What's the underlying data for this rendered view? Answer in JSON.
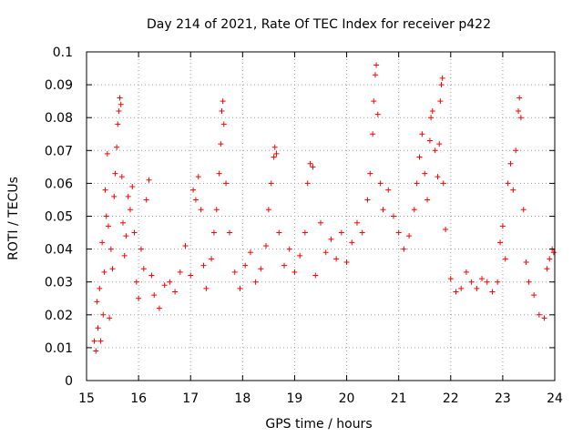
{
  "chart_data": {
    "type": "scatter",
    "title": "Day 214 of 2021, Rate Of TEC Index for receiver p422",
    "xlabel": "GPS time / hours",
    "ylabel": "ROTI / TECUs",
    "xlim": [
      15,
      24
    ],
    "ylim": [
      0,
      0.1
    ],
    "grid": true,
    "marker": "plus",
    "color": "#ff0000",
    "x_ticks": [
      "15",
      "16",
      "17",
      "18",
      "19",
      "20",
      "21",
      "22",
      "23",
      "24"
    ],
    "y_ticks": [
      "0",
      "0.01",
      "0.02",
      "0.03",
      "0.04",
      "0.05",
      "0.06",
      "0.07",
      "0.08",
      "0.09",
      "0.1"
    ],
    "x_tick_values": [
      15,
      16,
      17,
      18,
      19,
      20,
      21,
      22,
      23,
      24
    ],
    "y_tick_values": [
      0,
      0.01,
      0.02,
      0.03,
      0.04,
      0.05,
      0.06,
      0.07,
      0.08,
      0.09,
      0.1
    ],
    "series": [
      {
        "values": [
          [
            15.15,
            0.012
          ],
          [
            15.18,
            0.009
          ],
          [
            15.2,
            0.024
          ],
          [
            15.22,
            0.016
          ],
          [
            15.25,
            0.028
          ],
          [
            15.27,
            0.012
          ],
          [
            15.3,
            0.042
          ],
          [
            15.32,
            0.02
          ],
          [
            15.34,
            0.033
          ],
          [
            15.36,
            0.058
          ],
          [
            15.38,
            0.05
          ],
          [
            15.4,
            0.069
          ],
          [
            15.42,
            0.047
          ],
          [
            15.44,
            0.019
          ],
          [
            15.47,
            0.04
          ],
          [
            15.5,
            0.034
          ],
          [
            15.53,
            0.056
          ],
          [
            15.55,
            0.063
          ],
          [
            15.58,
            0.071
          ],
          [
            15.6,
            0.078
          ],
          [
            15.62,
            0.082
          ],
          [
            15.64,
            0.086
          ],
          [
            15.66,
            0.084
          ],
          [
            15.68,
            0.062
          ],
          [
            15.7,
            0.048
          ],
          [
            15.73,
            0.038
          ],
          [
            15.76,
            0.044
          ],
          [
            15.8,
            0.056
          ],
          [
            15.84,
            0.052
          ],
          [
            15.88,
            0.059
          ],
          [
            15.92,
            0.045
          ],
          [
            15.96,
            0.03
          ],
          [
            16.0,
            0.025
          ],
          [
            16.05,
            0.04
          ],
          [
            16.1,
            0.034
          ],
          [
            16.15,
            0.055
          ],
          [
            16.2,
            0.061
          ],
          [
            16.25,
            0.032
          ],
          [
            16.3,
            0.026
          ],
          [
            16.4,
            0.022
          ],
          [
            16.5,
            0.029
          ],
          [
            16.6,
            0.03
          ],
          [
            16.7,
            0.027
          ],
          [
            16.8,
            0.033
          ],
          [
            16.9,
            0.041
          ],
          [
            17.0,
            0.032
          ],
          [
            17.05,
            0.058
          ],
          [
            17.1,
            0.055
          ],
          [
            17.15,
            0.062
          ],
          [
            17.2,
            0.052
          ],
          [
            17.25,
            0.035
          ],
          [
            17.3,
            0.028
          ],
          [
            17.4,
            0.037
          ],
          [
            17.45,
            0.045
          ],
          [
            17.5,
            0.052
          ],
          [
            17.55,
            0.063
          ],
          [
            17.58,
            0.072
          ],
          [
            17.6,
            0.082
          ],
          [
            17.62,
            0.085
          ],
          [
            17.64,
            0.078
          ],
          [
            17.68,
            0.06
          ],
          [
            17.75,
            0.045
          ],
          [
            17.85,
            0.033
          ],
          [
            17.95,
            0.028
          ],
          [
            18.05,
            0.035
          ],
          [
            18.15,
            0.039
          ],
          [
            18.25,
            0.03
          ],
          [
            18.35,
            0.034
          ],
          [
            18.45,
            0.041
          ],
          [
            18.5,
            0.052
          ],
          [
            18.55,
            0.06
          ],
          [
            18.6,
            0.068
          ],
          [
            18.62,
            0.071
          ],
          [
            18.65,
            0.069
          ],
          [
            18.7,
            0.045
          ],
          [
            18.8,
            0.035
          ],
          [
            18.9,
            0.04
          ],
          [
            19.0,
            0.033
          ],
          [
            19.1,
            0.038
          ],
          [
            19.2,
            0.045
          ],
          [
            19.25,
            0.06
          ],
          [
            19.3,
            0.066
          ],
          [
            19.35,
            0.065
          ],
          [
            19.4,
            0.032
          ],
          [
            19.5,
            0.048
          ],
          [
            19.6,
            0.039
          ],
          [
            19.7,
            0.043
          ],
          [
            19.8,
            0.037
          ],
          [
            19.9,
            0.045
          ],
          [
            20.0,
            0.036
          ],
          [
            20.1,
            0.042
          ],
          [
            20.2,
            0.048
          ],
          [
            20.3,
            0.045
          ],
          [
            20.4,
            0.055
          ],
          [
            20.45,
            0.063
          ],
          [
            20.5,
            0.075
          ],
          [
            20.52,
            0.085
          ],
          [
            20.55,
            0.093
          ],
          [
            20.57,
            0.096
          ],
          [
            20.6,
            0.081
          ],
          [
            20.65,
            0.06
          ],
          [
            20.7,
            0.052
          ],
          [
            20.8,
            0.058
          ],
          [
            20.9,
            0.05
          ],
          [
            21.0,
            0.045
          ],
          [
            21.1,
            0.04
          ],
          [
            21.2,
            0.044
          ],
          [
            21.3,
            0.052
          ],
          [
            21.35,
            0.06
          ],
          [
            21.4,
            0.068
          ],
          [
            21.45,
            0.075
          ],
          [
            21.5,
            0.063
          ],
          [
            21.55,
            0.055
          ],
          [
            21.6,
            0.073
          ],
          [
            21.62,
            0.08
          ],
          [
            21.65,
            0.082
          ],
          [
            21.7,
            0.07
          ],
          [
            21.75,
            0.062
          ],
          [
            21.78,
            0.072
          ],
          [
            21.8,
            0.085
          ],
          [
            21.82,
            0.09
          ],
          [
            21.84,
            0.092
          ],
          [
            21.86,
            0.06
          ],
          [
            21.9,
            0.046
          ],
          [
            22.0,
            0.031
          ],
          [
            22.1,
            0.027
          ],
          [
            22.2,
            0.028
          ],
          [
            22.3,
            0.033
          ],
          [
            22.4,
            0.03
          ],
          [
            22.5,
            0.028
          ],
          [
            22.6,
            0.031
          ],
          [
            22.7,
            0.03
          ],
          [
            22.8,
            0.027
          ],
          [
            22.9,
            0.03
          ],
          [
            22.95,
            0.042
          ],
          [
            23.0,
            0.047
          ],
          [
            23.05,
            0.037
          ],
          [
            23.1,
            0.06
          ],
          [
            23.15,
            0.066
          ],
          [
            23.2,
            0.058
          ],
          [
            23.25,
            0.07
          ],
          [
            23.3,
            0.082
          ],
          [
            23.32,
            0.086
          ],
          [
            23.35,
            0.08
          ],
          [
            23.4,
            0.052
          ],
          [
            23.45,
            0.036
          ],
          [
            23.5,
            0.03
          ],
          [
            23.6,
            0.026
          ],
          [
            23.7,
            0.02
          ],
          [
            23.8,
            0.019
          ],
          [
            23.85,
            0.034
          ],
          [
            23.9,
            0.037
          ],
          [
            23.95,
            0.04
          ],
          [
            23.98,
            0.039
          ]
        ]
      }
    ]
  }
}
